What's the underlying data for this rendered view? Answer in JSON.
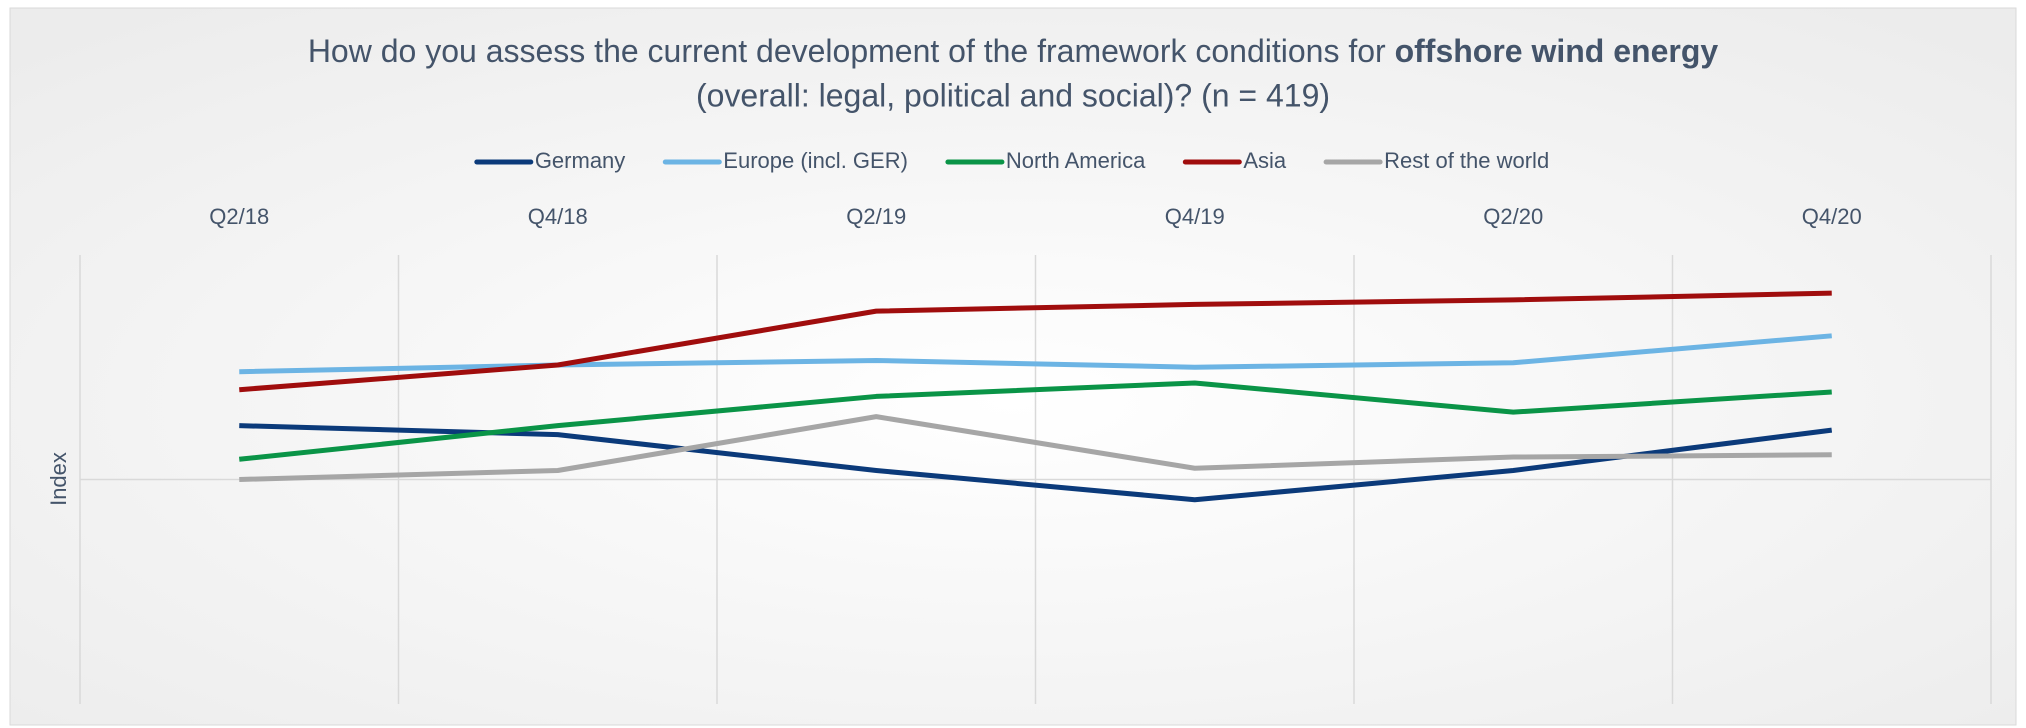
{
  "chart_data": {
    "type": "line",
    "title": "How do you assess the current development of the framework conditions for ",
    "title_bold": "offshore wind energy",
    "subtitle": "(overall: legal, political and social)? (n = 419)",
    "y_label": "Index",
    "categories": [
      "Q2/18",
      "Q4/18",
      "Q2/19",
      "Q4/19",
      "Q2/20",
      "Q4/20"
    ],
    "series": [
      {
        "name": "Germany",
        "color": "#0b3a7a",
        "values": [
          24,
          20,
          4,
          -9,
          4,
          22
        ]
      },
      {
        "name": "Europe (incl. GER)",
        "color": "#6cb4e4",
        "values": [
          48,
          51,
          53,
          50,
          52,
          64
        ]
      },
      {
        "name": "North America",
        "color": "#0a9447",
        "values": [
          9,
          24,
          37,
          43,
          30,
          39
        ]
      },
      {
        "name": "Asia",
        "color": "#a00d0d",
        "values": [
          40,
          51,
          75,
          78,
          80,
          83
        ]
      },
      {
        "name": "Rest of the world",
        "color": "#a6a6a6",
        "values": [
          0,
          4,
          28,
          5,
          10,
          11
        ]
      }
    ],
    "ylim": [
      -100,
      100
    ],
    "yticks": [
      0
    ],
    "grid": true,
    "legend": "top"
  }
}
